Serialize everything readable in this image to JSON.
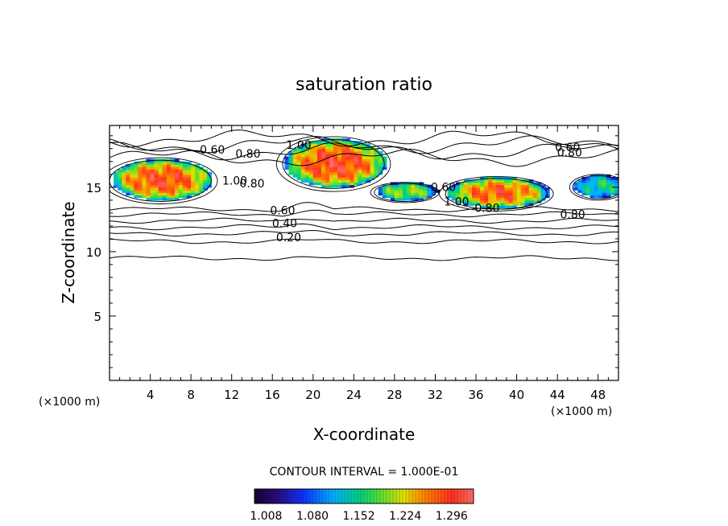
{
  "chart_data": {
    "type": "heatmap",
    "title": "saturation ratio",
    "xlabel": "X-coordinate",
    "ylabel": "Z-coordinate",
    "x_unit_left": "(×1000 m)",
    "x_unit_right": "(×1000 m)",
    "xlim": [
      0,
      50
    ],
    "ylim": [
      0,
      19.8
    ],
    "x_ticks": [
      4,
      8,
      12,
      16,
      20,
      24,
      28,
      32,
      36,
      40,
      44,
      48
    ],
    "y_ticks": [
      5,
      10,
      15
    ],
    "contour_interval_text": "CONTOUR INTERVAL = 1.000E-01",
    "colorbar_ticks": [
      "1.008",
      "1.080",
      "1.152",
      "1.224",
      "1.296"
    ],
    "colorbar_range": [
      0.99,
      1.33
    ],
    "contour_labels": [
      {
        "text": "0.20",
        "x": 17.6,
        "y": 10.8
      },
      {
        "text": "0.40",
        "x": 17.2,
        "y": 11.9
      },
      {
        "text": "0.60",
        "x": 17.0,
        "y": 12.9
      },
      {
        "text": "1.00",
        "x": 18.6,
        "y": 18.0
      },
      {
        "text": "0.80",
        "x": 13.6,
        "y": 17.3
      },
      {
        "text": "1.00",
        "x": 12.3,
        "y": 15.2
      },
      {
        "text": "0.80",
        "x": 14.0,
        "y": 15.0
      },
      {
        "text": "0.60",
        "x": 10.1,
        "y": 17.6
      },
      {
        "text": "1.00",
        "x": 34.1,
        "y": 13.6
      },
      {
        "text": "0.60",
        "x": 32.8,
        "y": 14.7
      },
      {
        "text": "0.80",
        "x": 37.1,
        "y": 13.1
      },
      {
        "text": "0.80",
        "x": 45.5,
        "y": 12.6
      },
      {
        "text": "0.60",
        "x": 45.0,
        "y": 17.8
      },
      {
        "text": "0.80",
        "x": 45.2,
        "y": 17.4
      }
    ],
    "supersaturated_regions": [
      {
        "x_center": 5,
        "z_center": 15.5,
        "x_radius": 5,
        "z_radius": 1.6,
        "peak": 1.29
      },
      {
        "x_center": 22,
        "z_center": 16.8,
        "x_radius": 5,
        "z_radius": 1.9,
        "peak": 1.3
      },
      {
        "x_center": 38,
        "z_center": 14.5,
        "x_radius": 5,
        "z_radius": 1.2,
        "peak": 1.28
      },
      {
        "x_center": 29,
        "z_center": 14.6,
        "x_radius": 3,
        "z_radius": 0.7,
        "peak": 1.2
      },
      {
        "x_center": 48,
        "z_center": 15.0,
        "x_radius": 2.5,
        "z_radius": 0.9,
        "peak": 1.15
      }
    ]
  }
}
